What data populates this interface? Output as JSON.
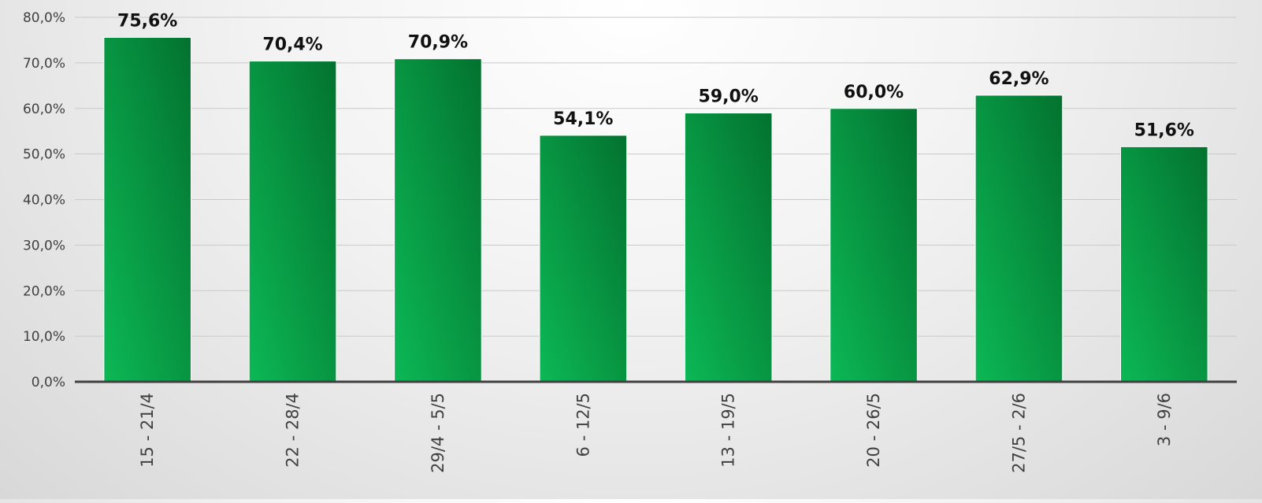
{
  "chart_data": {
    "type": "bar",
    "title": "",
    "xlabel": "",
    "ylabel": "",
    "categories": [
      "15 - 21/4",
      "22 - 28/4",
      "29/4 - 5/5",
      "6 - 12/5",
      "13 - 19/5",
      "20 - 26/5",
      "27/5 - 2/6",
      "3 - 9/6"
    ],
    "values": [
      75.6,
      70.4,
      70.9,
      54.1,
      59.0,
      60.0,
      62.9,
      51.6
    ],
    "data_labels": [
      "75,6%",
      "70,4%",
      "70,9%",
      "54,1%",
      "59,0%",
      "60,0%",
      "62,9%",
      "51,6%"
    ],
    "ylim": [
      0,
      80
    ],
    "yticks": [
      0,
      10,
      20,
      30,
      40,
      50,
      60,
      70,
      80
    ],
    "ytick_labels": [
      "0,0%",
      "10,0%",
      "20,0%",
      "30,0%",
      "40,0%",
      "50,0%",
      "60,0%",
      "70,0%",
      "80,0%"
    ],
    "grid": true,
    "legend": "none",
    "colors": {
      "bar_light": "#0cb855",
      "bar_dark": "#03722f",
      "axis": "#404040",
      "grid": "#c9c9c9"
    }
  }
}
